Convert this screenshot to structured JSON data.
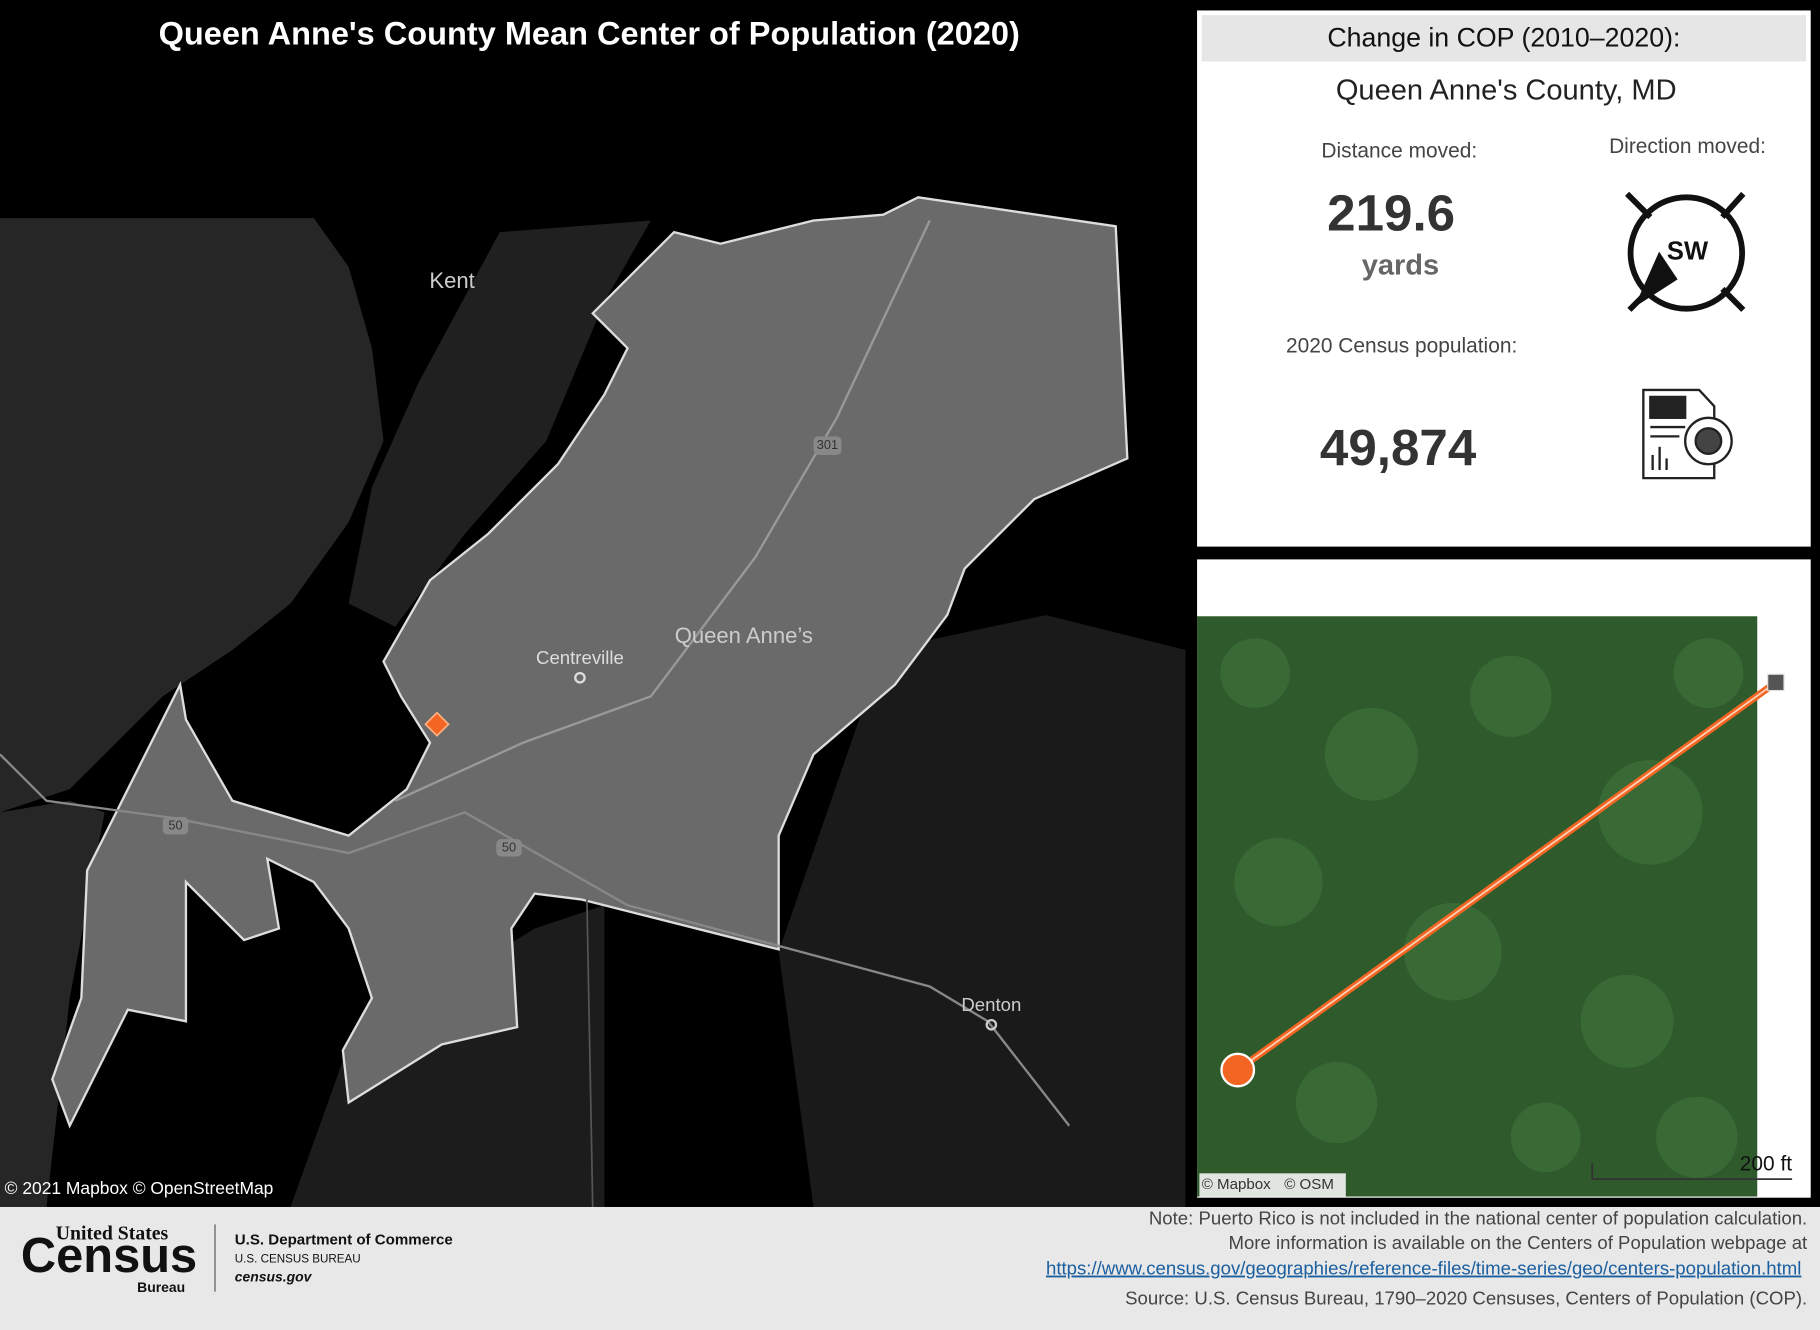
{
  "header": {
    "title": "Queen Anne's County Mean Center of Population (2020)"
  },
  "map": {
    "labels": {
      "kent": "Kent",
      "county": "Queen Anne’s",
      "centreville": "Centreville",
      "denton": "Denton"
    },
    "shields": [
      "301",
      "50",
      "50"
    ],
    "attribution": "© 2021 Mapbox © OpenStreetMap"
  },
  "panel": {
    "heading": "Change in COP (2010–2020):",
    "place": "Queen Anne's County, MD",
    "distance_label": "Distance moved:",
    "distance": "219.6",
    "distance_unit": "yards",
    "direction_label": "Direction moved:",
    "direction": "SW",
    "population_label": "2020 Census population:",
    "population": "49,874"
  },
  "inset": {
    "attribution": [
      "© Mapbox",
      "© OSM"
    ],
    "scale": "200 ft"
  },
  "footer": {
    "logo": {
      "top": "United States",
      "main": "Census",
      "sub": "Bureau"
    },
    "agency": [
      "U.S. Department of Commerce",
      "U.S. CENSUS BUREAU",
      "census.gov"
    ],
    "note": [
      "Note: Puerto Rico is not included in the national center of population calculation.",
      "More information is available on the Centers of Population webpage at"
    ],
    "link": "https://www.census.gov/geographies/reference-files/time-series/geo/centers-population.html",
    "source": "Source: U.S. Census Bureau, 1790–2020 Censuses, Centers of Population (COP)."
  }
}
